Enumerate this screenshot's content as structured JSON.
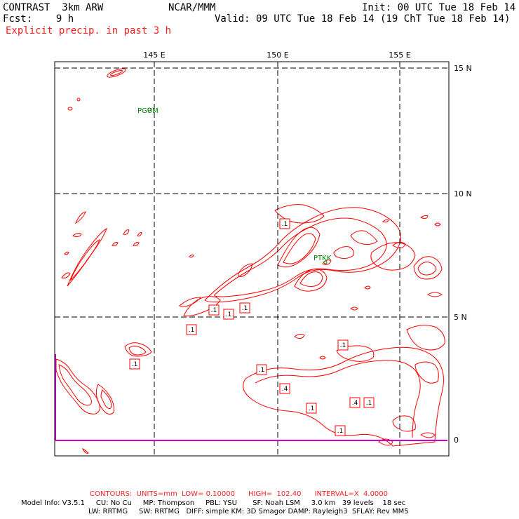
{
  "header": {
    "model": "CONTRAST  3km ARW",
    "center": "NCAR/MMM",
    "init": "Init: 00 UTC Tue 18 Feb 14",
    "fcst": "Fcst:    9 h",
    "valid": "Valid: 09 UTC Tue 18 Feb 14 (19 ChT Tue 18 Feb 14)",
    "field": "Explicit precip. in past 3 h"
  },
  "map": {
    "lon_labels": [
      "145 E",
      "150 E",
      "155 E"
    ],
    "lat_labels": [
      "15 N",
      "10 N",
      "5 N",
      "0"
    ],
    "stations": [
      "PGUM",
      "PTKK"
    ],
    "contour_labels": [
      ".1",
      ".1",
      ".1",
      ".1",
      ".1",
      ".1",
      ".1",
      ".1",
      ".4",
      ".1",
      ".4",
      ".1",
      ".1"
    ],
    "contour_color": "#ff0000",
    "station_color": "#008000",
    "boundary_color": "#cc00cc"
  },
  "footer": {
    "contours": "CONTOURS:  UNITS=mm  LOW= 0.10000      HIGH=  102.40      INTERVAL=X  4.0000",
    "info1": "Model Info: V3.5.1     CU: No Cu     MP: Thompson     PBL: YSU       SF: Noah LSM     3.0 km   39 levels    18 sec",
    "info2": "LW: RRTMG     SW: RRTMG   DIFF: simple KM: 3D Smagor DAMP: Rayleigh3  SFLAY: Rev MM5"
  }
}
